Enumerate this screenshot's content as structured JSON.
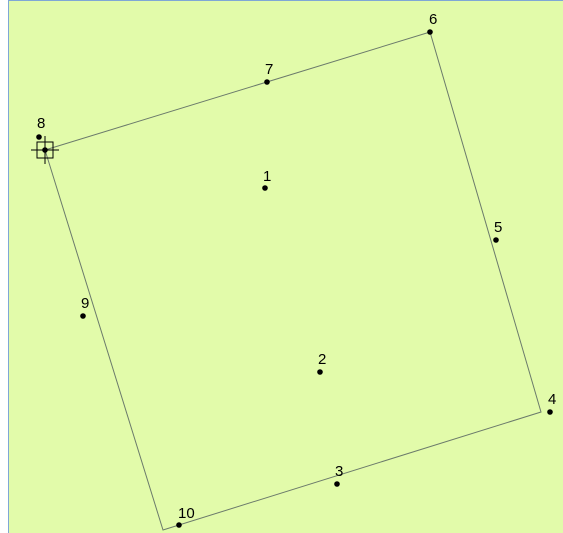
{
  "points": [
    {
      "label": "1"
    },
    {
      "label": "2"
    },
    {
      "label": "3"
    },
    {
      "label": "4"
    },
    {
      "label": "5"
    },
    {
      "label": "6"
    },
    {
      "label": "7"
    },
    {
      "label": "8"
    },
    {
      "label": "9"
    },
    {
      "label": "10"
    }
  ]
}
